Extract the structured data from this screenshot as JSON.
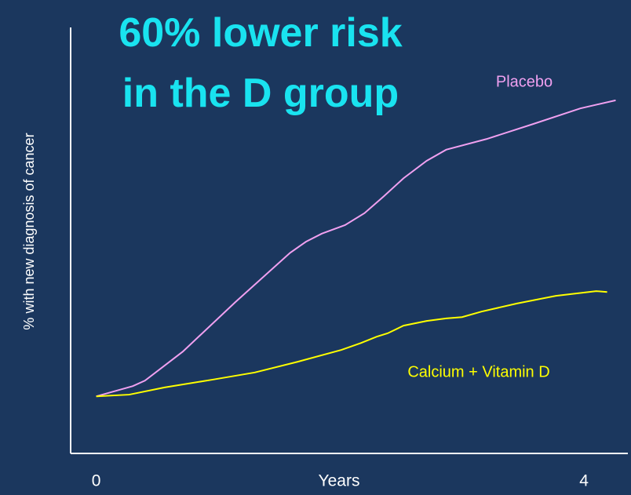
{
  "chart_data": {
    "type": "line",
    "title": "60% lower risk in the D group",
    "xlabel": "Years",
    "ylabel": "% with new diagnosis of cancer",
    "xlim": [
      -0.21,
      4.36
    ],
    "xticks": [
      0,
      4
    ],
    "ylim": [
      0,
      100
    ],
    "grid": false,
    "series": [
      {
        "name": "Placebo",
        "color": "#f0a0f0",
        "x": [
          0,
          0.3,
          0.4,
          0.71,
          1.14,
          1.59,
          1.72,
          1.85,
          2.04,
          2.2,
          2.36,
          2.52,
          2.71,
          2.87,
          3.2,
          3.58,
          3.97,
          4.26
        ],
        "values": [
          13.4,
          15.8,
          17.1,
          23.9,
          35.5,
          47.1,
          49.7,
          51.6,
          53.6,
          56.4,
          60.4,
          64.6,
          68.7,
          71.3,
          73.8,
          77.3,
          81.0,
          82.9
        ]
      },
      {
        "name": "Calcium + Vitamin D",
        "color": "#ffff00",
        "x": [
          0,
          0.27,
          0.56,
          0.95,
          1.3,
          1.65,
          2.01,
          2.17,
          2.3,
          2.39,
          2.52,
          2.71,
          2.87,
          3.0,
          3.16,
          3.45,
          3.77,
          4.1,
          4.19
        ],
        "values": [
          13.4,
          13.8,
          15.5,
          17.3,
          19.0,
          21.5,
          24.3,
          25.9,
          27.4,
          28.2,
          30.0,
          31.1,
          31.7,
          32.0,
          33.3,
          35.2,
          37.0,
          38.1,
          37.9
        ]
      }
    ]
  }
}
